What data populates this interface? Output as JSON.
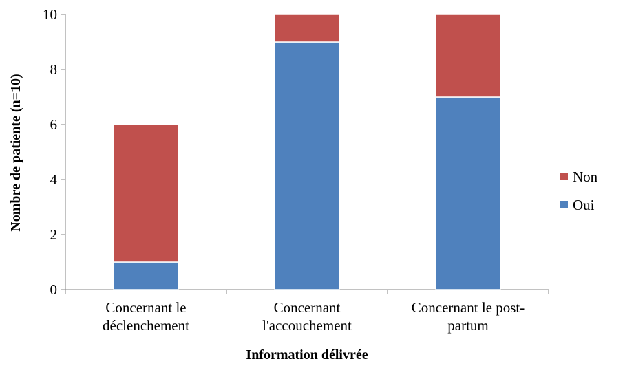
{
  "chart_data": {
    "type": "bar",
    "stacked": true,
    "categories": [
      [
        "Concernant le",
        "déclenchement"
      ],
      [
        "Concernant",
        "l'accouchement"
      ],
      [
        "Concernant le post-",
        "partum"
      ]
    ],
    "series": [
      {
        "name": "Oui",
        "values": [
          1,
          9,
          7
        ],
        "color": "#4F81BD"
      },
      {
        "name": "Non",
        "values": [
          5,
          1,
          3
        ],
        "color": "#C0504D"
      }
    ],
    "xlabel": "Information délivrée",
    "ylabel": "Nombre de patiente (n=10)",
    "ylim": [
      0,
      10
    ],
    "yticks": [
      0,
      2,
      4,
      6,
      8,
      10
    ],
    "legend": {
      "placement": "right",
      "order": [
        "Non",
        "Oui"
      ]
    },
    "grid": false
  }
}
